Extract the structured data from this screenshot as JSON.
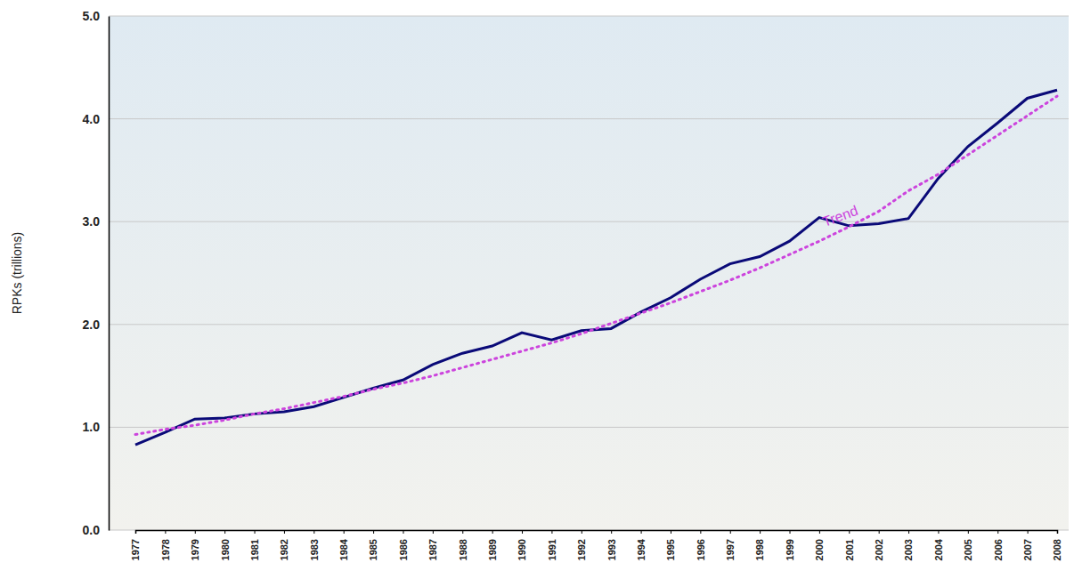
{
  "chart_data": {
    "type": "line",
    "y_label": "RPKs (trillions)",
    "categories": [
      "1977",
      "1978",
      "1979",
      "1980",
      "1981",
      "1982",
      "1983",
      "1984",
      "1985",
      "1986",
      "1987",
      "1988",
      "1989",
      "1990",
      "1991",
      "1992",
      "1993",
      "1994",
      "1995",
      "1996",
      "1997",
      "1998",
      "1999",
      "2000",
      "2001",
      "2002",
      "2003",
      "2004",
      "2005",
      "2006",
      "2007",
      "2008"
    ],
    "series": [
      {
        "color": "#0a0a78",
        "line_style": "solid",
        "values": [
          0.83,
          0.95,
          1.08,
          1.09,
          1.13,
          1.15,
          1.2,
          1.29,
          1.38,
          1.46,
          1.61,
          1.72,
          1.79,
          1.92,
          1.85,
          1.94,
          1.96,
          2.12,
          2.26,
          2.44,
          2.59,
          2.66,
          2.81,
          3.04,
          2.96,
          2.98,
          3.03,
          3.42,
          3.73,
          3.96,
          4.2,
          4.28
        ]
      },
      {
        "name": "Trend",
        "color": "#cc44dd",
        "line_style": "dotted",
        "values": [
          0.93,
          0.98,
          1.02,
          1.07,
          1.13,
          1.18,
          1.24,
          1.3,
          1.37,
          1.43,
          1.5,
          1.58,
          1.66,
          1.74,
          1.82,
          1.91,
          2.01,
          2.11,
          2.21,
          2.32,
          2.43,
          2.55,
          2.68,
          2.81,
          2.95,
          3.1,
          3.3,
          3.46,
          3.65,
          3.84,
          4.03,
          4.22
        ]
      }
    ],
    "ylim": [
      0,
      5
    ],
    "yticks": [
      {
        "value": 0,
        "label": "0.0"
      },
      {
        "value": 1,
        "label": "1.0"
      },
      {
        "value": 2,
        "label": "2.0"
      },
      {
        "value": 3,
        "label": "3.0"
      },
      {
        "value": 4,
        "label": "4.0"
      },
      {
        "value": 5,
        "label": "5.0"
      }
    ],
    "grid": true
  }
}
